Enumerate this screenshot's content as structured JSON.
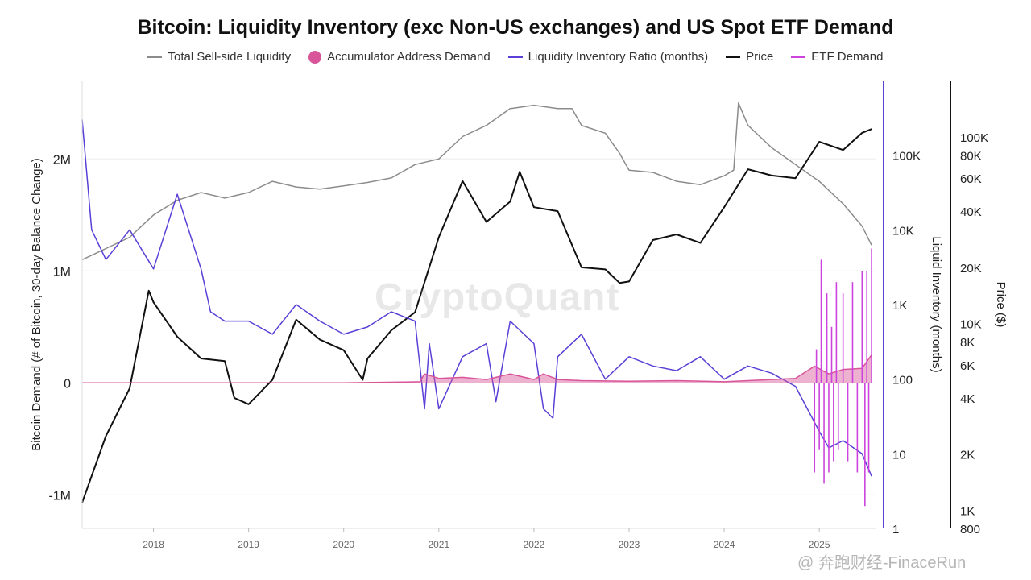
{
  "chart_data": {
    "type": "line",
    "title": "Bitcoin: Liquidity Inventory (exc Non-US exchanges) and US Spot ETF Demand",
    "legend": [
      {
        "name": "Total Sell-side Liquidity",
        "color": "#8c8c8c",
        "marker": "line"
      },
      {
        "name": "Accumulator Address Demand",
        "color": "#d9559a",
        "marker": "dot"
      },
      {
        "name": "Liquidity Inventory Ratio (months)",
        "color": "#5b3fd6",
        "marker": "line"
      },
      {
        "name": "Price",
        "color": "#111111",
        "marker": "line"
      },
      {
        "name": "ETF Demand",
        "color": "#cc44dd",
        "marker": "line"
      }
    ],
    "legend_position": "top-center",
    "x_ticks": [
      "2018",
      "2019",
      "2020",
      "2021",
      "2022",
      "2023",
      "2024",
      "2025"
    ],
    "x_range": [
      2017.25,
      2025.6
    ],
    "left_axis": {
      "label": "Bitcoin Demand (# of Bitcoin, 30-day Balance Change)",
      "ticks": [
        {
          "label": "2M",
          "value": 2000000
        },
        {
          "label": "1M",
          "value": 1000000
        },
        {
          "label": "0",
          "value": 0
        },
        {
          "label": "-1M",
          "value": -1000000
        }
      ],
      "range": [
        -1300000,
        2700000
      ]
    },
    "middle_axis": {
      "label": "Liquid Inventory (months)",
      "scale": "log",
      "ticks": [
        {
          "label": "100K",
          "value": 100000
        },
        {
          "label": "10K",
          "value": 10000
        },
        {
          "label": "1K",
          "value": 1000
        },
        {
          "label": "100",
          "value": 100
        },
        {
          "label": "10",
          "value": 10
        },
        {
          "label": "1",
          "value": 1
        }
      ],
      "range": [
        1,
        1000000
      ]
    },
    "right_axis": {
      "label": "Price ($)",
      "scale": "log",
      "ticks": [
        {
          "label": "100K",
          "value": 100000
        },
        {
          "label": "80K",
          "value": 80000
        },
        {
          "label": "60K",
          "value": 60000
        },
        {
          "label": "40K",
          "value": 40000
        },
        {
          "label": "20K",
          "value": 20000
        },
        {
          "label": "10K",
          "value": 10000
        },
        {
          "label": "8K",
          "value": 8000
        },
        {
          "label": "6K",
          "value": 6000
        },
        {
          "label": "4K",
          "value": 4000
        },
        {
          "label": "2K",
          "value": 2000
        },
        {
          "label": "1K",
          "value": 1000
        },
        {
          "label": "800",
          "value": 800
        }
      ],
      "range": [
        800,
        200000
      ]
    },
    "series": [
      {
        "name": "Total Sell-side Liquidity",
        "axis": "left",
        "color": "#8c8c8c",
        "x": [
          2017.25,
          2017.5,
          2017.75,
          2018.0,
          2018.25,
          2018.5,
          2018.75,
          2019.0,
          2019.25,
          2019.5,
          2019.75,
          2020.0,
          2020.25,
          2020.5,
          2020.75,
          2021.0,
          2021.25,
          2021.5,
          2021.75,
          2022.0,
          2022.25,
          2022.4,
          2022.5,
          2022.75,
          2022.9,
          2023.0,
          2023.25,
          2023.5,
          2023.75,
          2024.0,
          2024.1,
          2024.15,
          2024.25,
          2024.5,
          2024.75,
          2025.0,
          2025.25,
          2025.45,
          2025.55
        ],
        "values": [
          1100000,
          1200000,
          1300000,
          1500000,
          1630000,
          1700000,
          1650000,
          1700000,
          1800000,
          1750000,
          1730000,
          1760000,
          1790000,
          1830000,
          1950000,
          2000000,
          2200000,
          2300000,
          2450000,
          2480000,
          2450000,
          2450000,
          2300000,
          2230000,
          2050000,
          1900000,
          1880000,
          1800000,
          1770000,
          1850000,
          1900000,
          2500000,
          2300000,
          2100000,
          1950000,
          1800000,
          1600000,
          1400000,
          1230000
        ]
      },
      {
        "name": "Price",
        "axis": "right",
        "color": "#111111",
        "x": [
          2017.25,
          2017.5,
          2017.75,
          2017.95,
          2018.0,
          2018.25,
          2018.5,
          2018.75,
          2018.85,
          2019.0,
          2019.25,
          2019.5,
          2019.75,
          2020.0,
          2020.2,
          2020.25,
          2020.5,
          2020.75,
          2021.0,
          2021.25,
          2021.5,
          2021.75,
          2021.85,
          2022.0,
          2022.25,
          2022.5,
          2022.75,
          2022.9,
          2023.0,
          2023.25,
          2023.5,
          2023.75,
          2024.0,
          2024.25,
          2024.5,
          2024.75,
          2025.0,
          2025.25,
          2025.45,
          2025.55
        ],
        "values": [
          1100,
          2500,
          4500,
          15000,
          13000,
          8500,
          6500,
          6300,
          4000,
          3700,
          5000,
          10500,
          8200,
          7200,
          5000,
          6500,
          9200,
          11500,
          29000,
          58000,
          35000,
          45000,
          65000,
          42000,
          40000,
          20000,
          19500,
          16500,
          16800,
          28000,
          30000,
          27000,
          42000,
          67000,
          62000,
          60000,
          94000,
          85000,
          105000,
          110000
        ]
      },
      {
        "name": "Liquidity Inventory Ratio (months)",
        "axis": "middle",
        "color": "#5b3fd6",
        "x": [
          2017.25,
          2017.35,
          2017.5,
          2017.75,
          2018.0,
          2018.25,
          2018.5,
          2018.6,
          2018.75,
          2019.0,
          2019.25,
          2019.5,
          2019.75,
          2020.0,
          2020.25,
          2020.5,
          2020.75,
          2020.85,
          2020.9,
          2021.0,
          2021.25,
          2021.5,
          2021.6,
          2021.75,
          2022.0,
          2022.1,
          2022.2,
          2022.25,
          2022.5,
          2022.75,
          2023.0,
          2023.25,
          2023.5,
          2023.75,
          2024.0,
          2024.25,
          2024.5,
          2024.75,
          2025.0,
          2025.1,
          2025.25,
          2025.45,
          2025.55
        ],
        "values": [
          300000,
          10000,
          4000,
          10000,
          3000,
          30000,
          3000,
          800,
          600,
          600,
          400,
          1000,
          600,
          400,
          500,
          800,
          600,
          40,
          300,
          40,
          200,
          300,
          50,
          600,
          300,
          40,
          30,
          200,
          400,
          100,
          200,
          150,
          130,
          200,
          100,
          150,
          120,
          80,
          20,
          12,
          15,
          10,
          5
        ]
      },
      {
        "name": "Accumulator Address Demand",
        "axis": "left",
        "color": "#d9559a",
        "x": [
          2017.25,
          2018.0,
          2019.0,
          2020.0,
          2020.8,
          2020.85,
          2021.0,
          2021.25,
          2021.5,
          2021.75,
          2022.0,
          2022.1,
          2022.25,
          2022.5,
          2023.0,
          2023.5,
          2024.0,
          2024.25,
          2024.75,
          2024.95,
          2025.1,
          2025.25,
          2025.45,
          2025.55
        ],
        "values": [
          0,
          0,
          0,
          0,
          10000,
          80000,
          40000,
          50000,
          30000,
          80000,
          30000,
          80000,
          30000,
          20000,
          15000,
          20000,
          10000,
          20000,
          40000,
          150000,
          80000,
          120000,
          130000,
          250000
        ]
      },
      {
        "name": "ETF Demand",
        "axis": "left",
        "color": "#cc44dd",
        "x": [
          2024.95,
          2024.97,
          2025.0,
          2025.02,
          2025.05,
          2025.08,
          2025.1,
          2025.13,
          2025.15,
          2025.18,
          2025.2,
          2025.25,
          2025.3,
          2025.35,
          2025.4,
          2025.45,
          2025.48,
          2025.5,
          2025.52,
          2025.55
        ],
        "values": [
          -800000,
          300000,
          -600000,
          1100000,
          -900000,
          800000,
          -800000,
          500000,
          -700000,
          900000,
          -600000,
          800000,
          -700000,
          900000,
          -800000,
          1000000,
          -1100000,
          1000000,
          -800000,
          1200000
        ]
      }
    ]
  },
  "watermark": "CryptoQuant",
  "brand": "@ 奔跑财经-FinaceRun"
}
